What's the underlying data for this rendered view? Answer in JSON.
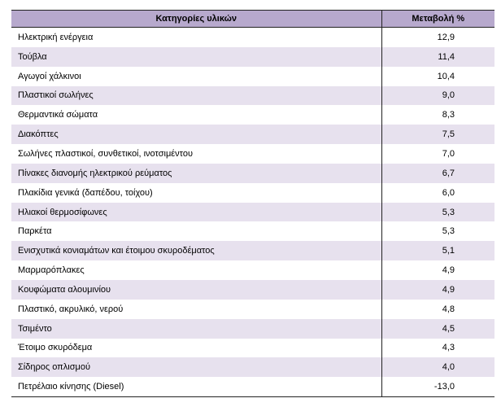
{
  "table": {
    "headers": [
      "Κατηγορίες υλικών",
      "Μεταβολή %"
    ],
    "rows": [
      [
        "Ηλεκτρική ενέργεια",
        "12,9"
      ],
      [
        "Τούβλα",
        "11,4"
      ],
      [
        "Αγωγοί χάλκινοι",
        "10,4"
      ],
      [
        "Πλαστικοί σωλήνες",
        "9,0"
      ],
      [
        "Θερμαντικά σώματα",
        "8,3"
      ],
      [
        "Διακόπτες",
        "7,5"
      ],
      [
        "Σωλήνες πλαστικοί, συνθετικοί, ινοτσιμέντου",
        "7,0"
      ],
      [
        "Πίνακες διανομής ηλεκτρικού ρεύματος",
        "6,7"
      ],
      [
        "Πλακίδια γενικά (δαπέδου, τοίχου)",
        "6,0"
      ],
      [
        "Ηλιακοί θερμοσίφωνες",
        "5,3"
      ],
      [
        "Παρκέτα",
        "5,3"
      ],
      [
        "Ενισχυτικά κονιαμάτων και έτοιμου σκυροδέματος",
        "5,1"
      ],
      [
        "Μαρμαρόπλακες",
        "4,9"
      ],
      [
        "Κουφώματα αλουμινίου",
        "4,9"
      ],
      [
        "Πλαστικό, ακρυλικό, νερού",
        "4,8"
      ],
      [
        "Τσιμέντο",
        "4,5"
      ],
      [
        "Έτοιμο σκυρόδεμα",
        "4,3"
      ],
      [
        "Σίδηρος οπλισμού",
        "4,0"
      ],
      [
        "Πετρέλαιο κίνησης (Diesel)",
        "-13,0"
      ]
    ]
  },
  "colors": {
    "header_background": "#b7a9cd",
    "band_background": "#e7e1ee",
    "row_background": "#ffffff"
  }
}
